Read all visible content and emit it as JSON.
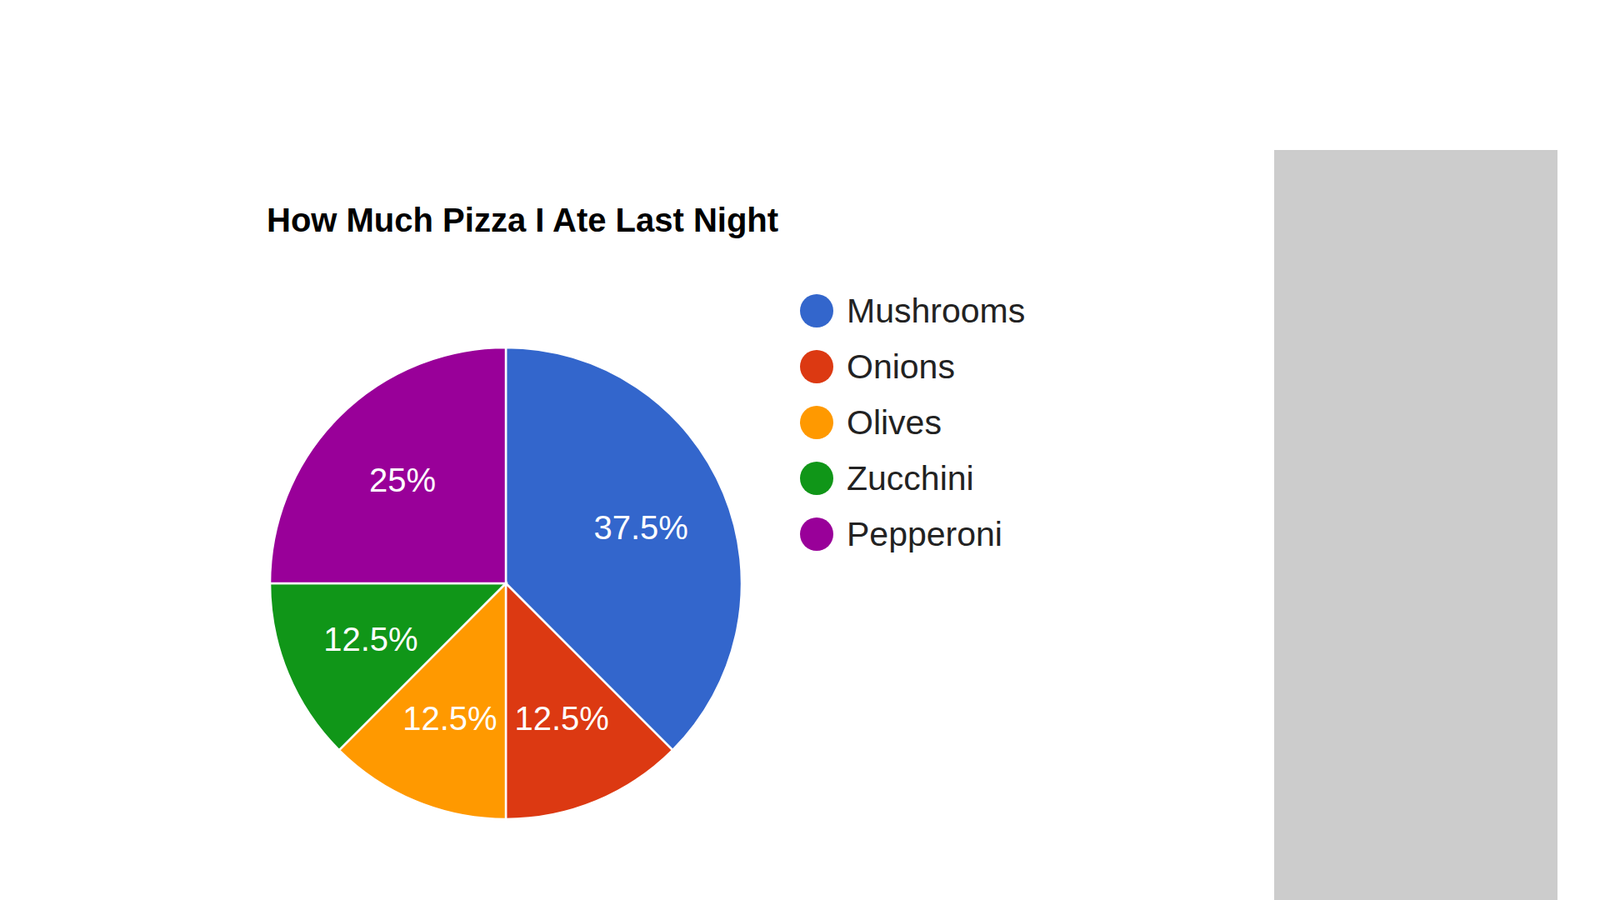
{
  "chart_data": {
    "type": "pie",
    "title": "How Much Pizza I Ate Last Night",
    "categories": [
      "Mushrooms",
      "Onions",
      "Olives",
      "Zucchini",
      "Pepperoni"
    ],
    "values": [
      37.5,
      12.5,
      12.5,
      12.5,
      25
    ],
    "value_labels": [
      "37.5%",
      "12.5%",
      "12.5%",
      "12.5%",
      "25%"
    ],
    "colors": [
      "#3366cc",
      "#dc3912",
      "#ff9900",
      "#109618",
      "#990099"
    ],
    "legend": "right",
    "data_labels": true
  }
}
